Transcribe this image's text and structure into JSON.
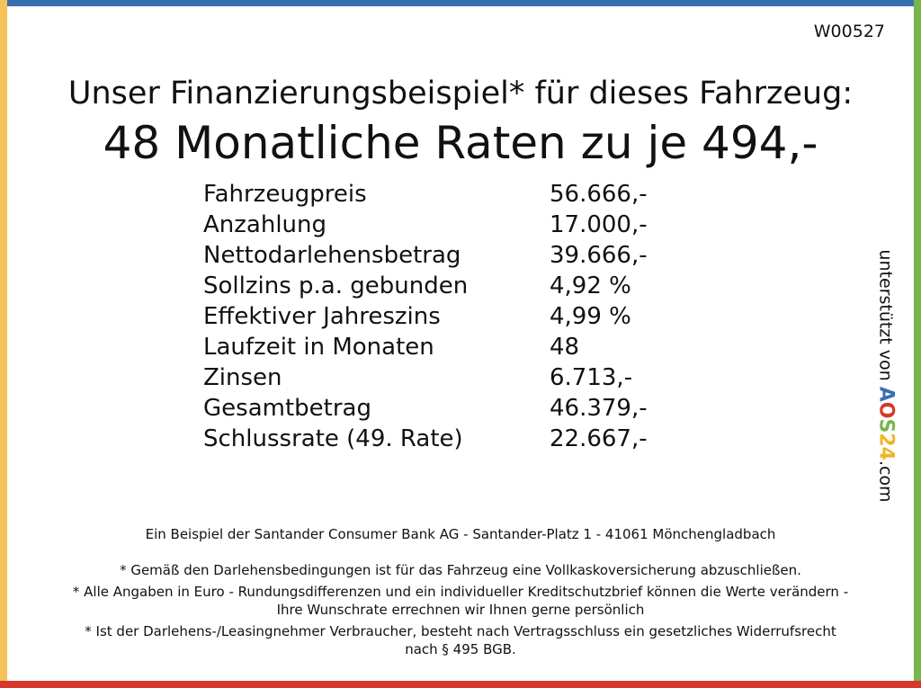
{
  "header": {
    "code": "W00527",
    "title": "Unser Finanzierungsbeispiel* für dieses Fahrzeug:",
    "headline": "48 Monatliche Raten zu je 494,-"
  },
  "table": {
    "rows": [
      [
        "Fahrzeugpreis",
        "56.666,-"
      ],
      [
        "Anzahlung",
        "17.000,-"
      ],
      [
        "Nettodarlehensbetrag",
        "39.666,-"
      ],
      [
        "Sollzins p.a. gebunden",
        "4,92 %"
      ],
      [
        "Effektiver Jahreszins",
        "4,99 %"
      ],
      [
        "Laufzeit in Monaten",
        "48"
      ],
      [
        "Zinsen",
        "6.713,-"
      ],
      [
        "Gesamtbetrag",
        "46.379,-"
      ],
      [
        "Schlussrate (49. Rate)",
        "22.667,-"
      ]
    ]
  },
  "footer": {
    "bank": "Ein Beispiel der Santander Consumer Bank AG - Santander-Platz 1 - 41061 Mönchengladbach",
    "notes": [
      "* Gemäß den Darlehensbedingungen ist für das Fahrzeug eine Vollkaskoversicherung abzuschließen.",
      "* Alle Angaben in Euro - Rundungsdifferenzen und ein individueller Kreditschutzbrief können die Werte verändern - Ihre Wunschrate errechnen wir Ihnen gerne persönlich",
      "* Ist der Darlehens-/Leasingnehmer Verbraucher, besteht nach Vertragsschluss ein gesetzliches Widerrufsrecht nach § 495 BGB."
    ]
  },
  "sponsor": {
    "prefix": "unterstützt von",
    "letters": [
      "A",
      "O",
      "S",
      "2",
      "4"
    ],
    "suffix": ".com"
  }
}
